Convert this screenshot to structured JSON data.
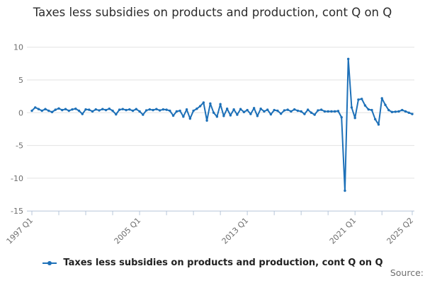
{
  "title": "Taxes less subsidies on products and production, cont Q on Q",
  "legend": {
    "label": "Taxes less subsidies on products and production, cont Q on Q"
  },
  "source_label": "Source:",
  "colors": {
    "line": "#1d70b8",
    "grid": "#e2e2e2",
    "axis": "#b7c6d9",
    "tick_text": "#6e6e6e",
    "title_text": "#2b2b2b"
  },
  "chart_data": {
    "type": "line",
    "title": "Taxes less subsidies on products and production, cont Q on Q",
    "xlabel": "",
    "ylabel": "",
    "ylim": [
      -15,
      10
    ],
    "y_ticks": [
      10,
      5,
      0,
      -5,
      -10,
      -15
    ],
    "grid": "horizontal",
    "legend_position": "bottom",
    "x_tick_labels": [
      "1997 Q1",
      "2005 Q1",
      "2013 Q1",
      "2021 Q1",
      "2025 Q2"
    ],
    "x_label_quarter_index": [
      0,
      32,
      64,
      96,
      113
    ],
    "x_minor_tick_step_quarters": 8,
    "series": [
      {
        "name": "Taxes less subsidies on products and production, cont Q on Q",
        "start": "1997 Q1",
        "end": "2025 Q2",
        "frequency": "quarterly",
        "values": [
          0.3,
          0.8,
          0.55,
          0.3,
          0.55,
          0.3,
          0.1,
          0.45,
          0.65,
          0.4,
          0.55,
          0.3,
          0.5,
          0.6,
          0.3,
          -0.2,
          0.5,
          0.45,
          0.2,
          0.5,
          0.35,
          0.55,
          0.4,
          0.6,
          0.3,
          -0.25,
          0.45,
          0.55,
          0.4,
          0.5,
          0.3,
          0.55,
          0.2,
          -0.3,
          0.35,
          0.5,
          0.4,
          0.55,
          0.35,
          0.5,
          0.45,
          0.3,
          -0.45,
          0.2,
          0.3,
          -0.6,
          0.5,
          -0.9,
          0.3,
          0.6,
          1.0,
          1.55,
          -1.2,
          1.4,
          0.0,
          -0.6,
          1.3,
          -0.5,
          0.6,
          -0.4,
          0.5,
          -0.3,
          0.55,
          0.1,
          0.4,
          -0.2,
          0.7,
          -0.5,
          0.6,
          0.2,
          0.45,
          -0.25,
          0.4,
          0.3,
          -0.15,
          0.35,
          0.45,
          0.2,
          0.5,
          0.3,
          0.2,
          -0.2,
          0.45,
          0.0,
          -0.3,
          0.35,
          0.45,
          0.2,
          0.2,
          0.2,
          0.2,
          0.25,
          -0.7,
          -11.9,
          8.2,
          0.8,
          -0.8,
          2.0,
          2.1,
          1.1,
          0.5,
          0.4,
          -1.0,
          -1.8,
          2.2,
          1.2,
          0.4,
          0.1,
          0.15,
          0.2,
          0.4,
          0.2,
          0.0,
          -0.2
        ]
      }
    ]
  }
}
